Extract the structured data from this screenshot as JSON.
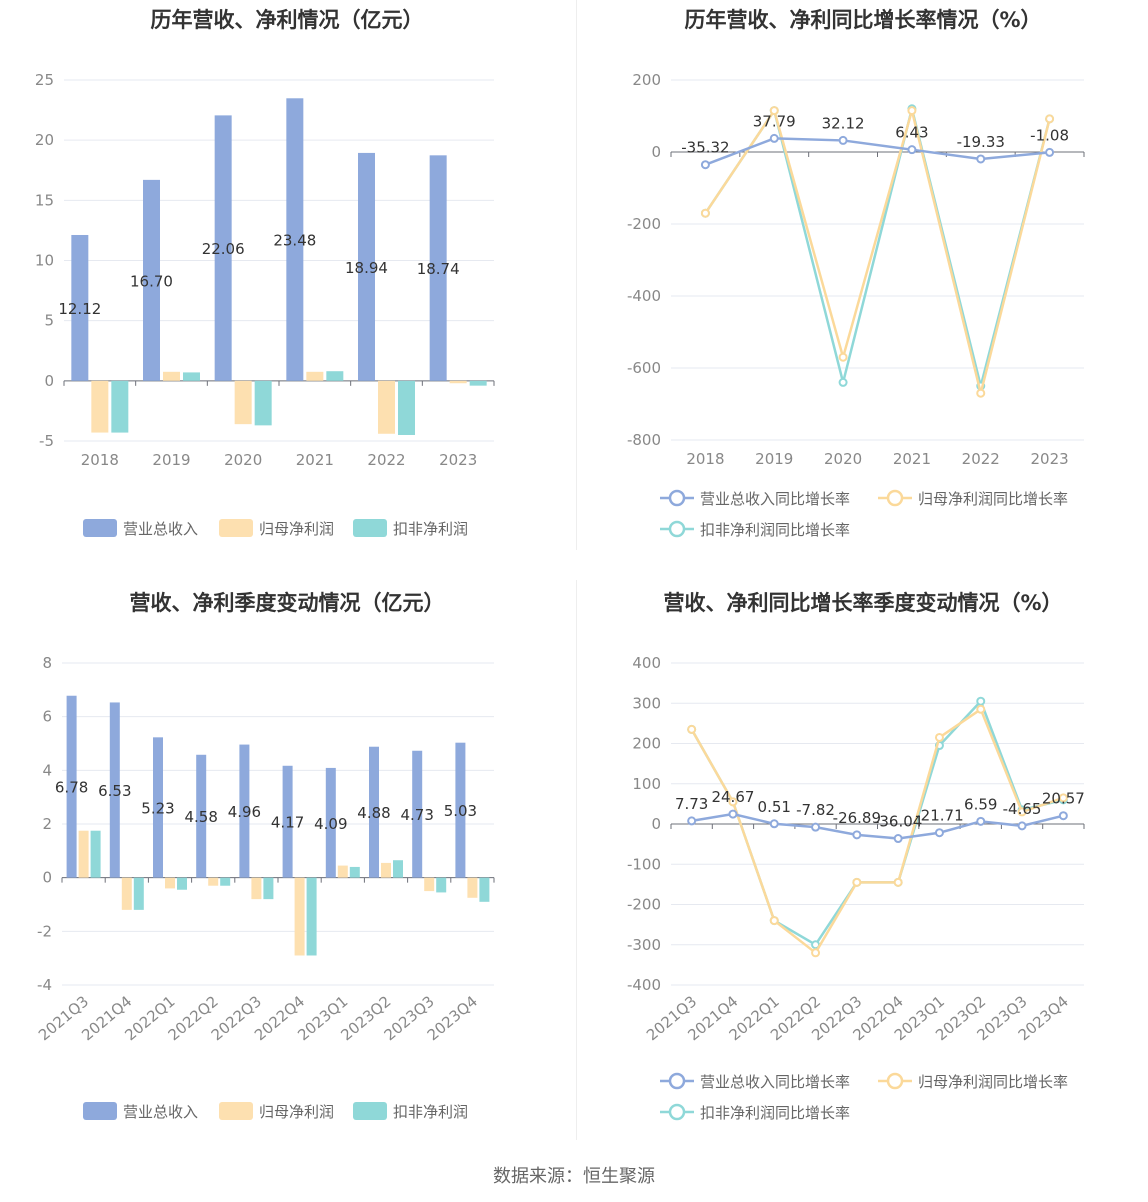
{
  "colors": {
    "revenue": "#8ea9dc",
    "net_profit": "#fde0b0",
    "deducted_profit": "#8fd8d8",
    "revenue_line": "#8ea9dc",
    "net_line": "#fbd99a",
    "deducted_line": "#8fd8d8"
  },
  "footer": "数据来源：恒生聚源",
  "chart_data": [
    {
      "type": "bar",
      "title": "历年营收、净利情况（亿元）",
      "categories": [
        "2018",
        "2019",
        "2020",
        "2021",
        "2022",
        "2023"
      ],
      "ylim": [
        -5,
        25
      ],
      "yticks": [
        -5,
        0,
        5,
        10,
        15,
        20,
        25
      ],
      "legend_position": "bottom",
      "series": [
        {
          "name": "营业总收入",
          "values": [
            12.12,
            16.7,
            22.06,
            23.48,
            18.94,
            18.74
          ],
          "labels": [
            "12.12",
            "16.70",
            "22.06",
            "23.48",
            "18.94",
            "18.74"
          ]
        },
        {
          "name": "归母净利润",
          "values": [
            -4.3,
            0.75,
            -3.6,
            0.75,
            -4.4,
            -0.2
          ]
        },
        {
          "name": "扣非净利润",
          "values": [
            -4.3,
            0.7,
            -3.7,
            0.8,
            -4.5,
            -0.4
          ]
        }
      ]
    },
    {
      "type": "line",
      "title": "历年营收、净利同比增长率情况（%）",
      "categories": [
        "2018",
        "2019",
        "2020",
        "2021",
        "2022",
        "2023"
      ],
      "ylim": [
        -800,
        200
      ],
      "yticks": [
        -800,
        -600,
        -400,
        -200,
        0,
        200
      ],
      "legend_position": "bottom",
      "series": [
        {
          "name": "营业总收入同比增长率",
          "values": [
            -35.32,
            37.79,
            32.12,
            6.43,
            -19.33,
            -1.08
          ],
          "labels": [
            "-35.32",
            "37.79",
            "32.12",
            "6.43",
            "-19.33",
            "-1.08"
          ]
        },
        {
          "name": "归母净利润同比增长率",
          "values": [
            -170,
            115,
            -570,
            115,
            -670,
            92
          ]
        },
        {
          "name": "扣非净利润同比增长率",
          "values": [
            -170,
            115,
            -640,
            120,
            -650,
            92
          ]
        }
      ]
    },
    {
      "type": "bar",
      "title": "营收、净利季度变动情况（亿元）",
      "categories": [
        "2021Q3",
        "2021Q4",
        "2022Q1",
        "2022Q2",
        "2022Q3",
        "2022Q4",
        "2023Q1",
        "2023Q2",
        "2023Q3",
        "2023Q4"
      ],
      "ylim": [
        -4,
        8
      ],
      "yticks": [
        -4,
        -2,
        0,
        2,
        4,
        6,
        8
      ],
      "legend_position": "bottom",
      "series": [
        {
          "name": "营业总收入",
          "values": [
            6.78,
            6.53,
            5.23,
            4.58,
            4.96,
            4.17,
            4.09,
            4.88,
            4.73,
            5.03
          ],
          "labels": [
            "6.78",
            "6.53",
            "5.23",
            "4.58",
            "4.96",
            "4.17",
            "4.09",
            "4.88",
            "4.73",
            "5.03"
          ]
        },
        {
          "name": "归母净利润",
          "values": [
            1.75,
            -1.2,
            -0.4,
            -0.3,
            -0.8,
            -2.9,
            0.45,
            0.55,
            -0.5,
            -0.75
          ]
        },
        {
          "name": "扣非净利润",
          "values": [
            1.75,
            -1.2,
            -0.45,
            -0.3,
            -0.8,
            -2.9,
            0.4,
            0.65,
            -0.55,
            -0.9
          ]
        }
      ]
    },
    {
      "type": "line",
      "title": "营收、净利同比增长率季度变动情况（%）",
      "categories": [
        "2021Q3",
        "2021Q4",
        "2022Q1",
        "2022Q2",
        "2022Q3",
        "2022Q4",
        "2023Q1",
        "2023Q2",
        "2023Q3",
        "2023Q4"
      ],
      "ylim": [
        -400,
        400
      ],
      "yticks": [
        -400,
        -300,
        -200,
        -100,
        0,
        100,
        200,
        300,
        400
      ],
      "legend_position": "bottom",
      "series": [
        {
          "name": "营业总收入同比增长率",
          "values": [
            7.73,
            24.67,
            0.51,
            -7.82,
            -26.89,
            -36.04,
            -21.71,
            6.59,
            -4.65,
            20.57
          ],
          "labels": [
            "7.73",
            "24.67",
            "0.51",
            "-7.82",
            "-26.89",
            "-36.04",
            "-21.71",
            "6.59",
            "-4.65",
            "20.57"
          ]
        },
        {
          "name": "归母净利润同比增长率",
          "values": [
            235,
            55,
            -240,
            -320,
            -145,
            -145,
            215,
            285,
            30,
            65
          ]
        },
        {
          "name": "扣非净利润同比增长率",
          "values": [
            235,
            55,
            -240,
            -300,
            -145,
            -145,
            195,
            305,
            35,
            60
          ]
        }
      ]
    }
  ]
}
